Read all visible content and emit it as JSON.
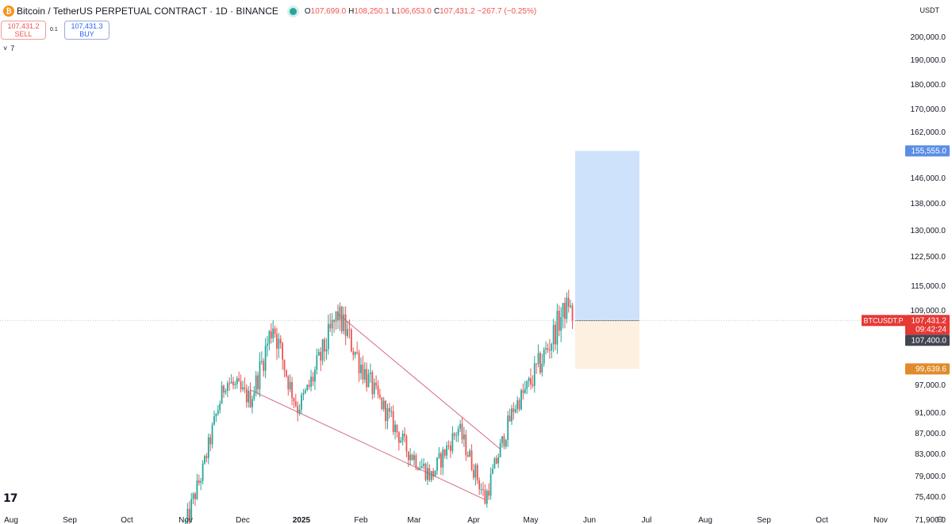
{
  "header": {
    "symbol": "Bitcoin / TetherUS PERPETUAL CONTRACT · 1D · BINANCE",
    "coin_glyph": "₿",
    "ohlc": [
      {
        "k": "O",
        "v": "107,699.0"
      },
      {
        "k": "H",
        "v": "108,250.1"
      },
      {
        "k": "L",
        "v": "106,653.0"
      },
      {
        "k": "C",
        "v": "107,431.2"
      },
      {
        "k": "",
        "v": "−267.7 (−0.25%)"
      }
    ]
  },
  "trade": {
    "sell_price": "107,431.2",
    "sell_label": "SELL",
    "buy_price": "107,431.3",
    "buy_label": "BUY",
    "spread": "0.1",
    "collapse_count": "7",
    "collapse_glyph": "˅"
  },
  "currency": "USDT",
  "logo": "17",
  "settings_glyph": "⚙",
  "colors": {
    "up": "#26a69a",
    "down": "#ef5350",
    "target_zone": "#cfe2fb",
    "stop_zone": "#fdf0e1",
    "trend_line": "#d46a7e",
    "price_badge": "#e53935",
    "target_badge": "#5b8de6",
    "stop_badge": "#e08b2a",
    "entry_badge": "#434651"
  },
  "chart_data": {
    "type": "candlestick",
    "y_axis": {
      "ticks": [
        "200,000.0",
        "190,000.0",
        "180,000.0",
        "170,000.0",
        "162,000.0",
        "146,000.0",
        "138,000.0",
        "130,000.0",
        "122,500.0",
        "115,000.0",
        "109,000.0",
        "97,000.0",
        "91,000.0",
        "87,000.0",
        "83,000.0",
        "79,000.0",
        "75,400.0",
        "71,900.0"
      ]
    },
    "x_axis": {
      "ticks": [
        "Aug",
        "Sep",
        "Oct",
        "Nov",
        "Dec",
        "2025",
        "Feb",
        "Mar",
        "Apr",
        "May",
        "Jun",
        "Jul",
        "Aug",
        "Sep",
        "Oct",
        "Nov"
      ]
    },
    "price_labels": {
      "symbol": "BTCUSDT.P",
      "last": "107,431.2",
      "countdown": "09:42:24",
      "entry": "107,400.0",
      "target": "155,555.0",
      "stop": "99,639.6"
    },
    "position": {
      "entry": 107400,
      "target": 155555,
      "stop": 99639.6
    },
    "key_prices": [
      {
        "date": "2024-11-01",
        "price": 71000
      },
      {
        "date": "2024-11-10",
        "price": 80000
      },
      {
        "date": "2024-11-22",
        "price": 98000
      },
      {
        "date": "2024-12-05",
        "price": 94000
      },
      {
        "date": "2024-12-17",
        "price": 107000
      },
      {
        "date": "2024-12-30",
        "price": 92000
      },
      {
        "date": "2025-01-20",
        "price": 108500
      },
      {
        "date": "2025-02-25",
        "price": 84000
      },
      {
        "date": "2025-03-10",
        "price": 79000
      },
      {
        "date": "2025-03-24",
        "price": 88000
      },
      {
        "date": "2025-04-07",
        "price": 75000
      },
      {
        "date": "2025-04-22",
        "price": 92000
      },
      {
        "date": "2025-05-10",
        "price": 103000
      },
      {
        "date": "2025-05-21",
        "price": 111000
      },
      {
        "date": "2025-05-23",
        "price": 107431
      }
    ],
    "trend_lines": [
      {
        "from": {
          "date": "2024-12-05",
          "price": 96000
        },
        "to": {
          "date": "2025-04-07",
          "price": 75000
        }
      },
      {
        "from": {
          "date": "2025-01-20",
          "price": 108500
        },
        "to": {
          "date": "2025-04-15",
          "price": 84000
        }
      }
    ]
  }
}
